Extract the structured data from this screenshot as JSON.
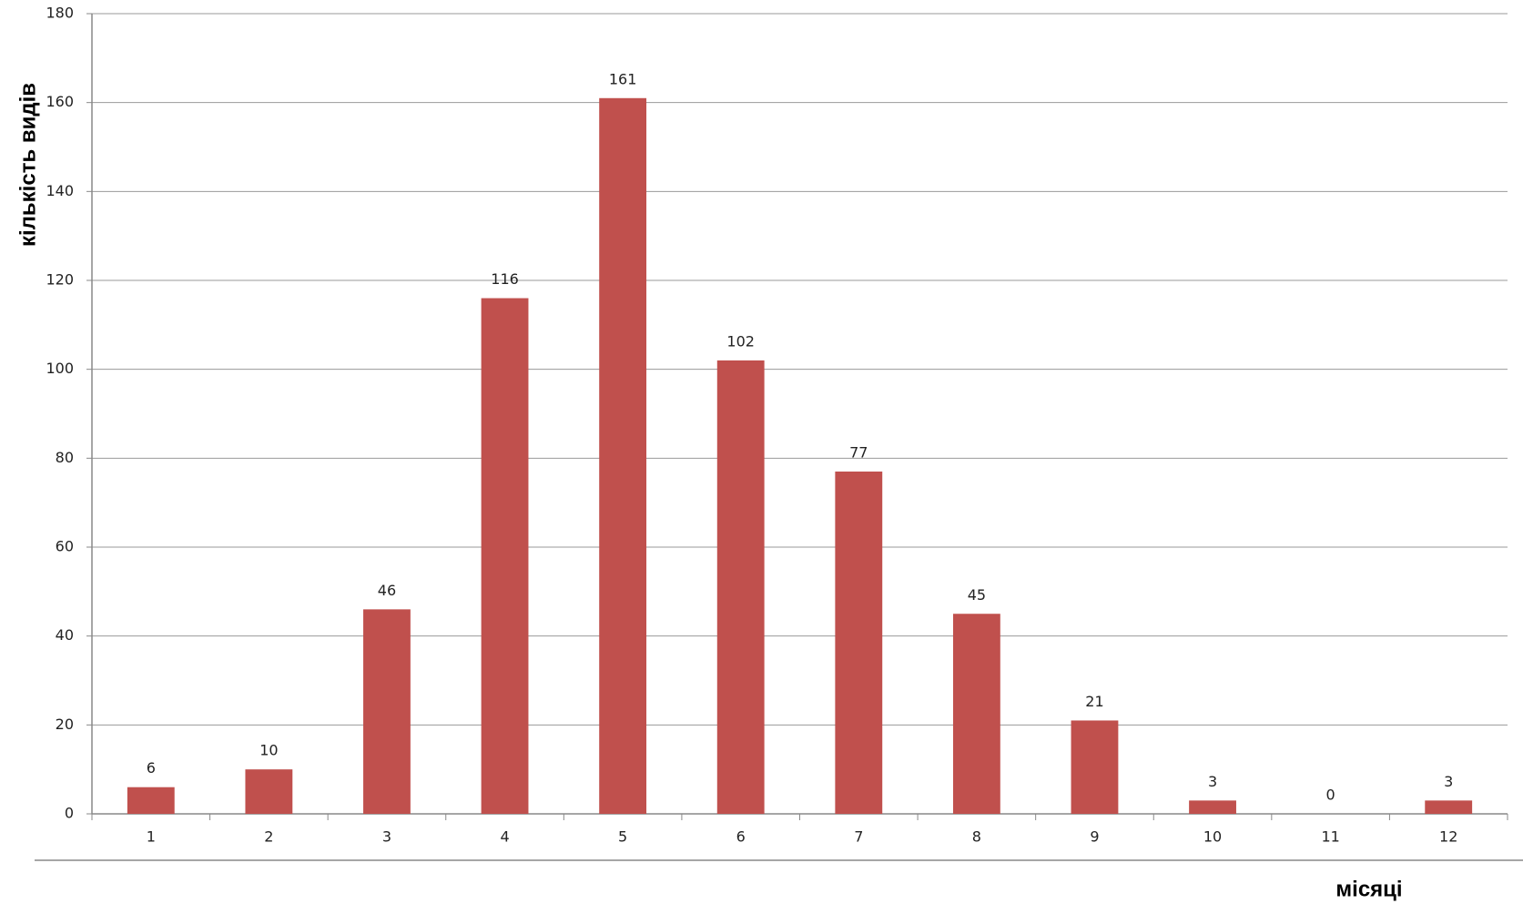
{
  "chart_data": {
    "type": "bar",
    "x_label": "місяці",
    "y_label": "кількість видів",
    "categories": [
      "1",
      "2",
      "3",
      "4",
      "5",
      "6",
      "7",
      "8",
      "9",
      "10",
      "11",
      "12"
    ],
    "values": [
      6,
      10,
      46,
      116,
      161,
      102,
      77,
      45,
      21,
      3,
      0,
      3
    ],
    "color": "#c0504d",
    "ylim": [
      0,
      180
    ],
    "yticks": [
      0,
      20,
      40,
      60,
      80,
      100,
      120,
      140,
      160,
      180
    ],
    "grid": true
  }
}
